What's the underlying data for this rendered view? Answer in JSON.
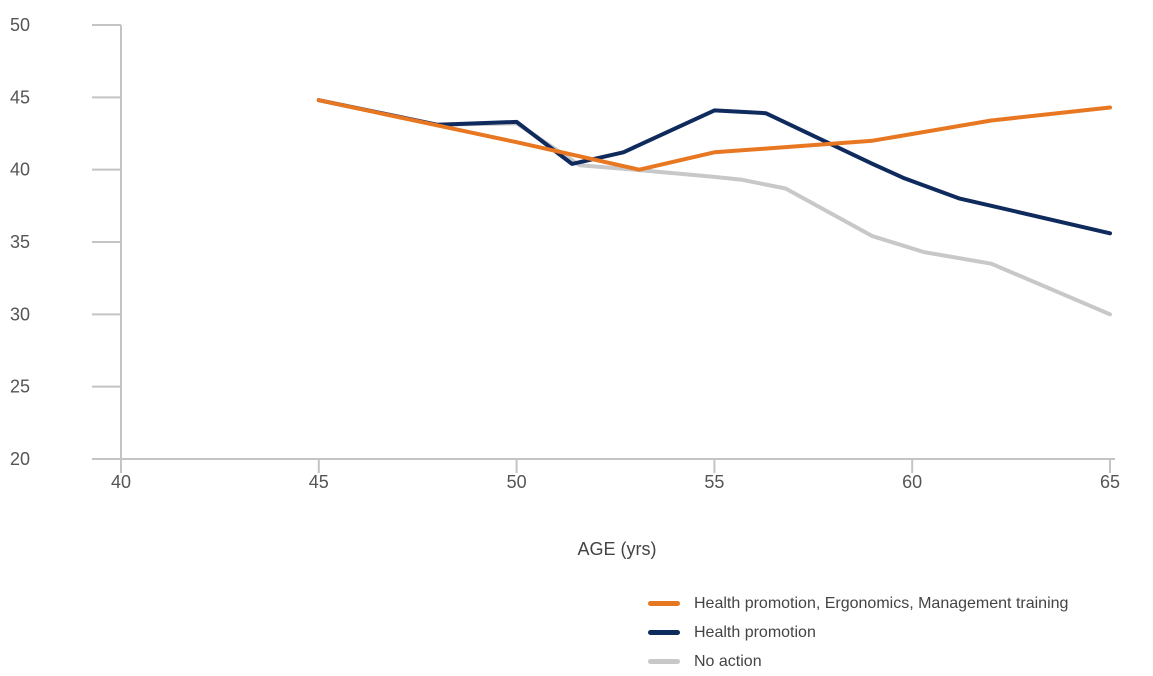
{
  "chart_data": {
    "type": "line",
    "title": "",
    "xlabel": "AGE (yrs)",
    "ylabel": "",
    "xlim": [
      40,
      65
    ],
    "ylim": [
      20,
      50
    ],
    "xticks": [
      40,
      45,
      50,
      55,
      60,
      65
    ],
    "yticks": [
      20,
      25,
      30,
      35,
      40,
      45,
      50
    ],
    "grid": false,
    "legend_position": "bottom-right",
    "series": [
      {
        "name": "Health promotion, Ergonomics, Management training",
        "color": "#E87722",
        "points": [
          [
            45,
            44.8
          ],
          [
            50,
            41.9
          ],
          [
            53.1,
            40.0
          ],
          [
            55,
            41.2
          ],
          [
            56.5,
            41.5
          ],
          [
            59,
            42.0
          ],
          [
            62,
            43.4
          ],
          [
            65,
            44.3
          ]
        ]
      },
      {
        "name": "Health promotion",
        "color": "#0F2A5C",
        "points": [
          [
            45,
            44.8
          ],
          [
            48,
            43.1
          ],
          [
            50,
            43.3
          ],
          [
            51.4,
            40.4
          ],
          [
            52.7,
            41.2
          ],
          [
            55,
            44.1
          ],
          [
            56.3,
            43.9
          ],
          [
            59,
            40.4
          ],
          [
            59.8,
            39.4
          ],
          [
            61.2,
            38.0
          ],
          [
            62,
            37.5
          ],
          [
            65,
            35.6
          ]
        ]
      },
      {
        "name": "No action",
        "color": "#C8C8C8",
        "points": [
          [
            45,
            44.8
          ],
          [
            48,
            43.1
          ],
          [
            50,
            43.2
          ],
          [
            51.6,
            40.3
          ],
          [
            53,
            40.0
          ],
          [
            55,
            39.5
          ],
          [
            55.7,
            39.3
          ],
          [
            56.8,
            38.7
          ],
          [
            59,
            35.4
          ],
          [
            60.3,
            34.3
          ],
          [
            62,
            33.5
          ],
          [
            65,
            30.0
          ]
        ]
      }
    ]
  }
}
